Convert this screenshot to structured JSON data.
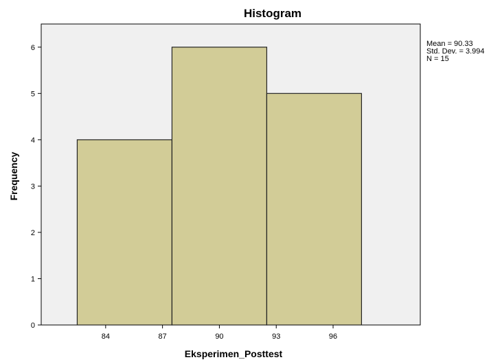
{
  "chart_data": {
    "type": "bar",
    "title": "Histogram",
    "xlabel": "Eksperimen_Posttest",
    "ylabel": "Frequency",
    "bins": [
      {
        "start": 82.5,
        "end": 87.5,
        "value": 4
      },
      {
        "start": 87.5,
        "end": 92.5,
        "value": 6
      },
      {
        "start": 92.5,
        "end": 97.5,
        "value": 5
      }
    ],
    "xticks": [
      84,
      87,
      90,
      93,
      96
    ],
    "xlim": [
      80.6,
      100.6
    ],
    "yticks": [
      0,
      1,
      2,
      3,
      4,
      5,
      6
    ],
    "ylim": [
      0,
      6.5
    ],
    "grid": false,
    "legend": "none",
    "stats": [
      "Mean = 90.33",
      "Std. Dev. = 3.994",
      "N = 15"
    ],
    "colors": {
      "bar_fill": "#d2cc97",
      "bar_stroke": "#222222",
      "plot_background": "#f0f0f0"
    }
  }
}
